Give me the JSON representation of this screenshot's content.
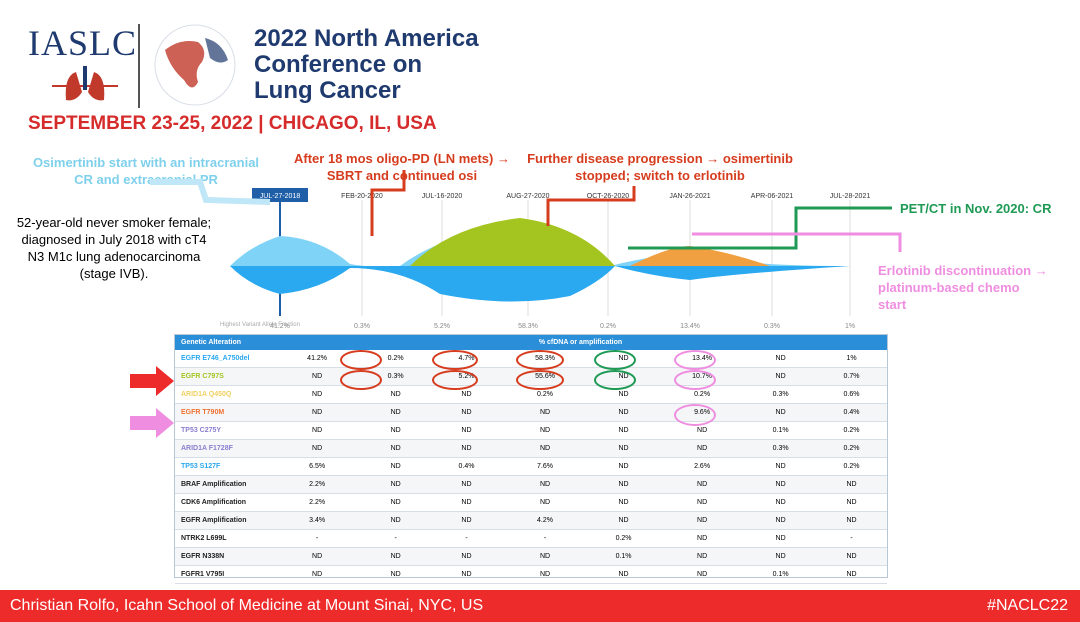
{
  "header": {
    "org": "IASLC",
    "conference": [
      "2022 North America",
      "Conference on",
      "Lung Cancer"
    ],
    "dates": "SEPTEMBER 23-25, 2022 | CHICAGO, IL, USA"
  },
  "annotations": {
    "osimertinib": "Osimertinib start with an intracranial CR and extracranial PR",
    "oligo": "After 18 mos oligo-PD (LN mets) → SBRT and continued osi",
    "progression": "Further disease progression → osimertinib stopped; switch to erlotinib",
    "pet": "PET/CT in Nov. 2020: CR",
    "erlotinib": "Erlotinib discontinuation → platinum-based chemo start",
    "patient": "52-year-old never smoker female; diagnosed in July 2018 with cT4 N3 M1c lung adenocarcinoma (stage IVB)."
  },
  "chart_data": {
    "type": "area",
    "dates": [
      "JUL-27-2018",
      "FEB-20-2020",
      "JUL-16-2020",
      "AUG-27-2020",
      "OCT-26-2020",
      "JAN-26-2021",
      "APR-06-2021",
      "JUL-28-2021"
    ],
    "vaf": [
      "41.2%",
      "0.3%",
      "5.2%",
      "58.3%",
      "0.2%",
      "13.4%",
      "0.3%",
      "1%"
    ],
    "vaf_label": "Highest Variant Allele Fraction",
    "colors": {
      "blue": "#2aa8f0",
      "green": "#a4c520",
      "orange": "#f0a040"
    }
  },
  "table": {
    "headers": [
      "Genetic Alteration",
      "% cfDNA or amplification"
    ],
    "rows": [
      {
        "gene": "EGFR E746_A750del",
        "color": "#2aa8f0",
        "vals": [
          "41.2%",
          "0.2%",
          "4.7%",
          "58.3%",
          "ND",
          "13.4%",
          "ND",
          "1%"
        ]
      },
      {
        "gene": "EGFR C797S",
        "color": "#a4c520",
        "vals": [
          "ND",
          "0.3%",
          "5.2%",
          "55.6%",
          "ND",
          "10.7%",
          "ND",
          "0.7%"
        ]
      },
      {
        "gene": "ARID1A Q450Q",
        "color": "#f0d060",
        "vals": [
          "ND",
          "ND",
          "ND",
          "0.2%",
          "ND",
          "0.2%",
          "0.3%",
          "0.6%"
        ]
      },
      {
        "gene": "EGFR T790M",
        "color": "#f07030",
        "vals": [
          "ND",
          "ND",
          "ND",
          "ND",
          "ND",
          "9.6%",
          "ND",
          "0.4%"
        ]
      },
      {
        "gene": "TP53 C275Y",
        "color": "#8a7fd0",
        "vals": [
          "ND",
          "ND",
          "ND",
          "ND",
          "ND",
          "ND",
          "0.1%",
          "0.2%"
        ]
      },
      {
        "gene": "ARID1A F1728F",
        "color": "#8a7fd0",
        "vals": [
          "ND",
          "ND",
          "ND",
          "ND",
          "ND",
          "ND",
          "0.3%",
          "0.2%"
        ]
      },
      {
        "gene": "TP53 S127F",
        "color": "#2aa8f0",
        "vals": [
          "6.5%",
          "ND",
          "0.4%",
          "7.6%",
          "ND",
          "2.6%",
          "ND",
          "0.2%"
        ]
      },
      {
        "gene": "BRAF Amplification",
        "color": "#222",
        "vals": [
          "2.2%",
          "ND",
          "ND",
          "ND",
          "ND",
          "ND",
          "ND",
          "ND"
        ]
      },
      {
        "gene": "CDK6 Amplification",
        "color": "#222",
        "vals": [
          "2.2%",
          "ND",
          "ND",
          "ND",
          "ND",
          "ND",
          "ND",
          "ND"
        ]
      },
      {
        "gene": "EGFR Amplification",
        "color": "#222",
        "vals": [
          "3.4%",
          "ND",
          "ND",
          "4.2%",
          "ND",
          "ND",
          "ND",
          "ND"
        ]
      },
      {
        "gene": "NTRK2 L699L",
        "color": "#222",
        "vals": [
          "-",
          "-",
          "-",
          "-",
          "0.2%",
          "ND",
          "ND",
          "-"
        ]
      },
      {
        "gene": "EGFR N338N",
        "color": "#222",
        "vals": [
          "ND",
          "ND",
          "ND",
          "ND",
          "0.1%",
          "ND",
          "ND",
          "ND"
        ]
      },
      {
        "gene": "FGFR1 V795I",
        "color": "#222",
        "vals": [
          "ND",
          "ND",
          "ND",
          "ND",
          "ND",
          "ND",
          "0.1%",
          "ND"
        ]
      }
    ]
  },
  "footer": {
    "presenter": "Christian Rolfo, Icahn School of Medicine at Mount Sinai, NYC, US",
    "hashtag": "#NACLC22"
  }
}
